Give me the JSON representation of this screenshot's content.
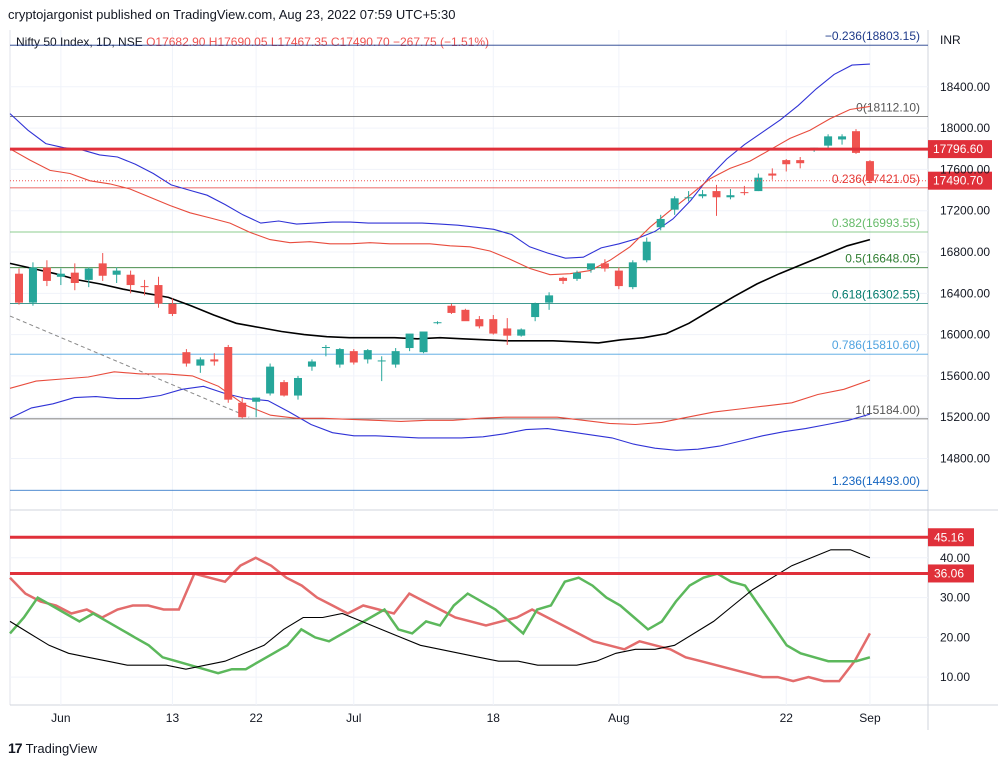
{
  "header": {
    "publisher": "cryptojargonist published on TradingView.com, Aug 23, 2022 07:59 UTC+5:30"
  },
  "footer": {
    "brand": "TradingView",
    "logo_icon": "tradingview-logo-icon"
  },
  "chart_data": {
    "type": "candlestick",
    "symbol": "Nifty 50 Index, 1D, NSE",
    "ohlc_label": {
      "o": "O17682.90",
      "h": "H17690.05",
      "l": "L17467.35",
      "c": "C17490.70",
      "chg": "−267.75 (−1.51%)"
    },
    "currency": "INR",
    "colors": {
      "up": "#26a69a",
      "down": "#ef5350",
      "bb_outer": "#3033d6",
      "bb_inner": "#e84c3d",
      "ma": "#000000",
      "rsi_fast": "#e36c6c",
      "rsi_slow": "#5cb85c",
      "level": "#e0303a"
    },
    "x_ticks": [
      {
        "label": "Jun",
        "i": 3
      },
      {
        "label": "13",
        "i": 11
      },
      {
        "label": "22",
        "i": 17
      },
      {
        "label": "Jul",
        "i": 24
      },
      {
        "label": "18",
        "i": 34
      },
      {
        "label": "Aug",
        "i": 43
      },
      {
        "label": "22",
        "i": 55
      },
      {
        "label": "Sep",
        "i": 61
      }
    ],
    "y_ticks": [
      "18400.00",
      "18000.00",
      "17600.00",
      "17200.00",
      "16800.00",
      "16400.00",
      "16000.00",
      "15600.00",
      "15200.00",
      "14800.00"
    ],
    "y_tick_values": [
      18400,
      18000,
      17600,
      17200,
      16800,
      16400,
      16000,
      15600,
      15200,
      14800
    ],
    "ylim": [
      14350,
      18950
    ],
    "candles": [
      [
        16590,
        16640,
        16290,
        16310
      ],
      [
        16310,
        16700,
        16280,
        16650
      ],
      [
        16650,
        16720,
        16470,
        16520
      ],
      [
        16560,
        16640,
        16480,
        16590
      ],
      [
        16600,
        16690,
        16430,
        16500
      ],
      [
        16530,
        16650,
        16460,
        16640
      ],
      [
        16690,
        16790,
        16520,
        16570
      ],
      [
        16580,
        16650,
        16500,
        16620
      ],
      [
        16580,
        16620,
        16400,
        16480
      ],
      [
        16470,
        16530,
        16380,
        16460
      ],
      [
        16480,
        16560,
        16260,
        16300
      ],
      [
        16300,
        16350,
        16180,
        16200
      ],
      [
        15830,
        15860,
        15690,
        15720
      ],
      [
        15700,
        15780,
        15630,
        15760
      ],
      [
        15760,
        15820,
        15700,
        15740
      ],
      [
        15880,
        15900,
        15340,
        15370
      ],
      [
        15340,
        15390,
        15190,
        15200
      ],
      [
        15350,
        15390,
        15200,
        15390
      ],
      [
        15430,
        15720,
        15410,
        15690
      ],
      [
        15540,
        15560,
        15400,
        15410
      ],
      [
        15410,
        15600,
        15370,
        15580
      ],
      [
        15690,
        15760,
        15650,
        15740
      ],
      [
        15880,
        15900,
        15790,
        15880
      ],
      [
        15710,
        15870,
        15680,
        15860
      ],
      [
        15840,
        15860,
        15710,
        15730
      ],
      [
        15760,
        15860,
        15720,
        15850
      ],
      [
        15750,
        15790,
        15550,
        15750
      ],
      [
        15710,
        15870,
        15680,
        15840
      ],
      [
        15870,
        16000,
        15840,
        16010
      ],
      [
        15830,
        16020,
        15820,
        16030
      ],
      [
        16120,
        16130,
        16100,
        16120
      ],
      [
        16280,
        16300,
        16200,
        16210
      ],
      [
        16240,
        16250,
        16140,
        16130
      ],
      [
        16150,
        16180,
        16060,
        16080
      ],
      [
        16150,
        16190,
        16000,
        16010
      ],
      [
        16060,
        16160,
        15900,
        15990
      ],
      [
        15990,
        16060,
        15980,
        16050
      ],
      [
        16170,
        16310,
        16130,
        16300
      ],
      [
        16310,
        16410,
        16240,
        16380
      ],
      [
        16550,
        16560,
        16490,
        16520
      ],
      [
        16540,
        16620,
        16520,
        16600
      ],
      [
        16630,
        16680,
        16600,
        16690
      ],
      [
        16690,
        16730,
        16610,
        16640
      ],
      [
        16620,
        16650,
        16440,
        16470
      ],
      [
        16460,
        16720,
        16440,
        16700
      ],
      [
        16720,
        16940,
        16700,
        16900
      ],
      [
        17040,
        17160,
        17010,
        17120
      ],
      [
        17210,
        17340,
        17160,
        17320
      ],
      [
        17320,
        17390,
        17290,
        17330
      ],
      [
        17340,
        17400,
        17320,
        17360
      ],
      [
        17390,
        17450,
        17150,
        17330
      ],
      [
        17330,
        17410,
        17310,
        17350
      ],
      [
        17380,
        17440,
        17350,
        17370
      ],
      [
        17390,
        17560,
        17390,
        17520
      ],
      [
        17560,
        17610,
        17500,
        17540
      ],
      [
        17690,
        17700,
        17580,
        17650
      ],
      [
        17690,
        17720,
        17610,
        17660
      ],
      [
        17790,
        17810,
        17770,
        17810
      ],
      [
        17830,
        17940,
        17790,
        17920
      ],
      [
        17890,
        17940,
        17840,
        17920
      ],
      [
        17970,
        17990,
        17750,
        17760
      ],
      [
        17680,
        17690,
        17467,
        17490
      ]
    ],
    "bb_outer_upper": [
      18140,
      17980,
      17850,
      17810,
      17790,
      17740,
      17720,
      17650,
      17560,
      17450,
      17400,
      17350,
      17260,
      17160,
      17080,
      17100,
      17070,
      17080,
      17090,
      17090,
      17080,
      17080,
      17080,
      17080,
      17070,
      17060,
      17040,
      17020,
      16970,
      16850,
      16790,
      16740,
      16750,
      16840,
      16880,
      16930,
      17000,
      17120,
      17300,
      17520,
      17700,
      17840,
      17960,
      18080,
      18220,
      18380,
      18520,
      18610,
      18620
    ],
    "bb_inner_upper": [
      17800,
      17690,
      17590,
      17560,
      17490,
      17460,
      17410,
      17330,
      17250,
      17180,
      17130,
      17080,
      16990,
      16920,
      16890,
      16900,
      16880,
      16880,
      16890,
      16880,
      16880,
      16880,
      16860,
      16850,
      16810,
      16730,
      16640,
      16580,
      16590,
      16620,
      16720,
      16850,
      17040,
      17200,
      17350,
      17510,
      17610,
      17680,
      17790,
      17900,
      17980,
      18090,
      18180,
      18210
    ],
    "bb_outer_lower": [
      15190,
      15290,
      15330,
      15390,
      15400,
      15380,
      15380,
      15410,
      15470,
      15500,
      15430,
      15380,
      15360,
      15250,
      15130,
      15050,
      15020,
      15020,
      15010,
      15000,
      15000,
      15000,
      15010,
      15040,
      15080,
      15090,
      15060,
      15030,
      15000,
      14940,
      14900,
      14880,
      14890,
      14920,
      14970,
      15020,
      15060,
      15090,
      15130,
      15170,
      15230
    ],
    "bb_inner_lower": [
      15480,
      15550,
      15570,
      15590,
      15640,
      15620,
      15620,
      15600,
      15500,
      15320,
      15220,
      15190,
      15190,
      15180,
      15170,
      15160,
      15170,
      15170,
      15190,
      15200,
      15200,
      15200,
      15170,
      15140,
      15130,
      15150,
      15200,
      15250,
      15280,
      15310,
      15340,
      15420,
      15470,
      15560
    ],
    "ma": [
      16690,
      16640,
      16590,
      16530,
      16490,
      16440,
      16400,
      16360,
      16280,
      16190,
      16110,
      16070,
      16030,
      16000,
      15980,
      15970,
      15970,
      15970,
      15960,
      15970,
      15960,
      15950,
      15940,
      15940,
      15940,
      15930,
      15920,
      15950,
      15970,
      16010,
      16110,
      16240,
      16370,
      16490,
      16590,
      16680,
      16770,
      16860,
      16920
    ],
    "rsi_ticks": [
      "10.00",
      "20.00",
      "30.00",
      "40.00"
    ],
    "rsi_tick_values": [
      10,
      20,
      30,
      40
    ],
    "rsi_ylim": [
      3,
      50
    ],
    "rsi_fast": [
      35,
      31,
      29,
      28,
      26,
      27,
      25,
      27,
      28,
      28,
      27,
      27,
      36,
      35,
      34,
      38,
      40,
      38,
      35,
      33,
      30,
      28,
      26,
      28,
      27,
      26,
      31,
      29,
      27,
      25,
      24,
      23,
      24,
      25,
      27,
      25,
      23,
      21,
      19,
      18,
      17,
      19,
      18,
      17,
      15,
      14,
      13,
      12,
      11,
      10,
      10,
      9,
      10,
      9,
      9,
      14,
      21
    ],
    "rsi_slow": [
      21,
      25,
      30,
      28,
      26,
      24,
      26,
      24,
      22,
      20,
      18,
      15,
      14,
      13,
      12,
      11,
      12,
      12,
      14,
      16,
      18,
      22,
      20,
      19,
      21,
      23,
      25,
      27,
      22,
      21,
      24,
      23,
      28,
      31,
      29,
      27,
      24,
      21,
      27,
      28,
      34,
      35,
      33,
      30,
      28,
      25,
      22,
      24,
      29,
      33,
      35,
      36,
      34,
      33,
      28,
      23,
      18,
      16,
      15,
      14,
      14,
      14,
      15
    ],
    "rsi_ma": [
      24,
      21,
      18,
      16,
      15,
      14,
      13,
      13,
      13,
      12,
      13,
      14,
      16,
      18,
      22,
      25,
      25,
      26,
      24,
      22,
      20,
      18,
      17,
      16,
      15,
      14,
      14,
      13,
      13,
      13,
      14,
      16,
      17,
      17,
      18,
      21,
      24,
      28,
      32,
      35,
      38,
      40,
      42,
      42,
      40
    ],
    "levels": [
      {
        "value": 17796.6,
        "label": "17796.60"
      },
      {
        "value": 17490.7,
        "label": "17490.70"
      }
    ],
    "rsi_levels": [
      {
        "value": 45.16,
        "label": "45.16"
      },
      {
        "value": 36.06,
        "label": "36.06"
      }
    ],
    "fib": [
      {
        "label": "−0.236(18803.15)",
        "value": 18803.15,
        "color": "#1e3a8a"
      },
      {
        "label": "0(18112.10)",
        "value": 18112.1,
        "color": "#555555"
      },
      {
        "label": "0.236(17421.05)",
        "value": 17421.05,
        "color": "#e53935"
      },
      {
        "label": "0.382(16993.55)",
        "value": 16993.55,
        "color": "#66bb6a"
      },
      {
        "label": "0.5(16648.05)",
        "value": 16648.05,
        "color": "#2e7d32"
      },
      {
        "label": "0.618(16302.55)",
        "value": 16302.55,
        "color": "#00796b"
      },
      {
        "label": "0.786(15810.60)",
        "value": 15810.6,
        "color": "#4fa3e0"
      },
      {
        "label": "1(15184.00)",
        "value": 15184.0,
        "color": "#555555"
      },
      {
        "label": "1.236(14493.00)",
        "value": 14493.0,
        "color": "#1565c0"
      }
    ]
  }
}
